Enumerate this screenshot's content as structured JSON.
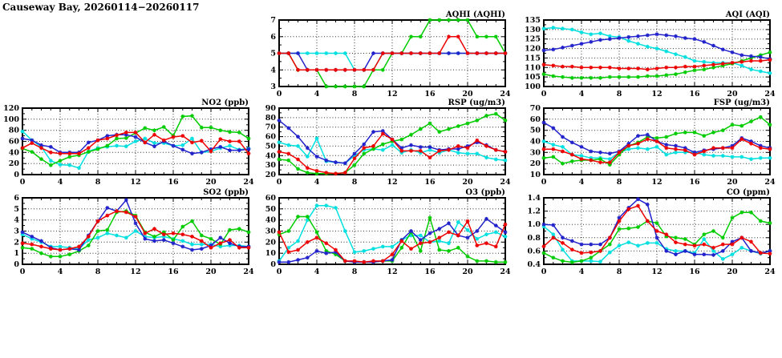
{
  "page_title": "Causeway Bay, 20260114−20260117",
  "colors": {
    "blue": "#2222cc",
    "red": "#ee0000",
    "green": "#00cc00",
    "cyan": "#00e0e0",
    "grid": "#333333",
    "axis": "#000000"
  },
  "chart_data": {
    "type": "line",
    "x_label_ticks": [
      0,
      4,
      8,
      12,
      16,
      20,
      24
    ],
    "x_hours": [
      0,
      1,
      2,
      3,
      4,
      5,
      6,
      7,
      8,
      9,
      10,
      11,
      12,
      13,
      14,
      15,
      16,
      17,
      18,
      19,
      20,
      21,
      22,
      23,
      24
    ],
    "xlabel": "",
    "series_order": [
      "cyan",
      "green",
      "blue",
      "red"
    ],
    "legend_position": "none",
    "grid": "dotted",
    "charts": [
      {
        "id": "aqhi",
        "title": "AQHI (AQHI)",
        "row": 0,
        "col": 1,
        "ylim": [
          3,
          7
        ],
        "ystep": 1,
        "ydecimals": 0,
        "series": {
          "cyan": [
            5,
            5,
            5,
            5,
            5,
            5,
            5,
            5,
            4,
            4,
            4,
            5,
            5,
            5,
            5,
            5,
            5,
            5,
            5,
            5,
            5,
            5,
            5,
            5,
            5
          ],
          "green": [
            5,
            5,
            4,
            4,
            4,
            3,
            3,
            3,
            3,
            3,
            4,
            4,
            5,
            5,
            6,
            6,
            7,
            7,
            7,
            7,
            7,
            6,
            6,
            6,
            5
          ],
          "blue": [
            5,
            5,
            5,
            4,
            4,
            4,
            4,
            4,
            4,
            4,
            5,
            5,
            5,
            5,
            5,
            5,
            5,
            5,
            5,
            5,
            5,
            5,
            5,
            5,
            5
          ],
          "red": [
            5,
            5,
            4,
            4,
            4,
            4,
            4,
            4,
            4,
            4,
            4,
            5,
            5,
            5,
            5,
            5,
            5,
            5,
            6,
            6,
            5,
            5,
            5,
            5,
            5
          ]
        }
      },
      {
        "id": "aqi",
        "title": "AQI (AQI)",
        "row": 0,
        "col": 2,
        "ylim": [
          100,
          135
        ],
        "ystep": 5,
        "ydecimals": 0,
        "series": {
          "cyan": [
            130.5,
            131,
            130.5,
            130,
            128.5,
            127.5,
            128,
            126.5,
            126,
            124,
            122.5,
            121,
            120,
            118.5,
            117,
            115.5,
            113.5,
            113,
            112.5,
            112.5,
            112.5,
            111,
            109,
            108,
            107
          ],
          "green": [
            106.5,
            105.5,
            105,
            104.5,
            104.5,
            104.5,
            104.5,
            105,
            105,
            105,
            105,
            105.5,
            105.5,
            106,
            106.5,
            107.5,
            108.5,
            109,
            110,
            111,
            112,
            113.5,
            115,
            116.5,
            118
          ],
          "blue": [
            119,
            119.5,
            120.5,
            121.5,
            122.5,
            123.5,
            124.5,
            125,
            125.5,
            126,
            126.5,
            127,
            127.5,
            127,
            126.5,
            125.5,
            125,
            123.5,
            121.5,
            119.5,
            118,
            116.5,
            116,
            115.5,
            114.5
          ],
          "red": [
            111.5,
            111,
            110.5,
            110.5,
            110,
            110,
            110,
            110,
            109.5,
            109.5,
            109.5,
            109,
            109.5,
            110,
            110,
            110.5,
            110.5,
            111,
            111.5,
            112,
            112.5,
            113,
            113.5,
            113.5,
            114
          ]
        }
      },
      {
        "id": "no2",
        "title": "NO2 (ppb)",
        "row": 1,
        "col": 0,
        "ylim": [
          0,
          120
        ],
        "ystep": 20,
        "ydecimals": 0,
        "series": {
          "cyan": [
            78,
            62,
            50,
            25,
            18,
            17,
            12,
            42,
            48,
            50,
            52,
            51,
            60,
            65,
            57,
            57,
            52,
            53,
            65,
            40,
            42,
            48,
            52,
            45,
            47
          ],
          "green": [
            47,
            41,
            28,
            17,
            25,
            32,
            35,
            41,
            46,
            52,
            65,
            66,
            75,
            84,
            80,
            86,
            70,
            105,
            106,
            85,
            85,
            80,
            77,
            76,
            65
          ],
          "blue": [
            65,
            62,
            53,
            50,
            40,
            40,
            40,
            58,
            62,
            70,
            72,
            72,
            68,
            58,
            51,
            60,
            52,
            45,
            38,
            40,
            46,
            50,
            44,
            44,
            46
          ],
          "red": [
            48,
            57,
            48,
            40,
            38,
            38,
            38,
            48,
            62,
            65,
            71,
            76,
            76,
            58,
            72,
            62,
            68,
            70,
            58,
            61,
            42,
            64,
            60,
            60,
            38
          ]
        }
      },
      {
        "id": "rsp",
        "title": "RSP (ug/m3)",
        "row": 1,
        "col": 1,
        "ylim": [
          20,
          90
        ],
        "ystep": 10,
        "ydecimals": 0,
        "series": {
          "cyan": [
            54,
            51,
            50,
            39,
            58,
            34,
            33,
            32,
            40,
            46,
            47,
            46,
            51,
            43,
            46,
            43,
            46,
            43,
            46,
            43,
            42,
            42,
            38,
            36,
            35
          ],
          "green": [
            36,
            35,
            26,
            22,
            21,
            21,
            21,
            22,
            30,
            42,
            47,
            52,
            55,
            57,
            62,
            68,
            74,
            65,
            68,
            71,
            74,
            77,
            82,
            84,
            77
          ],
          "blue": [
            77,
            69,
            60,
            48,
            39,
            35,
            33,
            32,
            42,
            52,
            65,
            66,
            57,
            48,
            51,
            49,
            49,
            46,
            47,
            47,
            50,
            54,
            51,
            46,
            44
          ],
          "red": [
            44,
            42,
            36,
            27,
            24,
            22,
            21,
            22,
            37,
            48,
            50,
            63,
            57,
            45,
            45,
            45,
            38,
            45,
            46,
            50,
            48,
            56,
            50,
            46,
            44
          ]
        }
      },
      {
        "id": "fsp",
        "title": "FSP (ug/m3)",
        "row": 1,
        "col": 2,
        "ylim": [
          10,
          70
        ],
        "ystep": 10,
        "ydecimals": 0,
        "series": {
          "cyan": [
            40,
            37,
            35,
            28,
            27,
            25,
            25,
            24,
            30,
            33,
            34,
            33,
            35,
            28,
            30,
            30,
            30,
            28,
            27,
            27,
            26,
            26,
            24,
            25,
            25
          ],
          "green": [
            25,
            26,
            20,
            22,
            23,
            23,
            24,
            19,
            28,
            36,
            39,
            44,
            43,
            44,
            47,
            48,
            48,
            45,
            48,
            50,
            55,
            54,
            58,
            62,
            55
          ],
          "blue": [
            57,
            52,
            44,
            39,
            35,
            31,
            30,
            29,
            31,
            38,
            45,
            46,
            40,
            37,
            36,
            34,
            30,
            32,
            33,
            34,
            36,
            43,
            40,
            36,
            34
          ],
          "red": [
            33,
            33,
            31,
            28,
            24,
            23,
            21,
            21,
            30,
            36,
            38,
            42,
            40,
            34,
            33,
            32,
            28,
            31,
            34,
            34,
            34,
            42,
            38,
            34,
            33
          ]
        }
      },
      {
        "id": "so2",
        "title": "SO2 (ppb)",
        "row": 2,
        "col": 0,
        "ylim": [
          0,
          6
        ],
        "ystep": 1,
        "ydecimals": 0,
        "series": {
          "cyan": [
            2.7,
            2.3,
            2.0,
            1.6,
            1.6,
            1.5,
            1.4,
            2.2,
            2.4,
            2.8,
            2.6,
            2.4,
            3.0,
            2.5,
            2.4,
            2.5,
            2.3,
            2.1,
            1.8,
            1.8,
            1.8,
            1.6,
            1.7,
            1.7,
            1.6
          ],
          "green": [
            1.5,
            1.4,
            1.0,
            0.7,
            0.7,
            0.9,
            1.2,
            1.7,
            3.0,
            3.1,
            4.7,
            4.8,
            4.4,
            2.9,
            2.5,
            2.9,
            2.2,
            3.4,
            3.9,
            2.6,
            2.3,
            1.8,
            3.1,
            3.2,
            2.9
          ],
          "blue": [
            2.9,
            2.5,
            2.1,
            1.5,
            1.3,
            1.4,
            1.3,
            2.6,
            3.9,
            5.1,
            4.8,
            5.8,
            3.7,
            2.3,
            2.1,
            2.2,
            1.9,
            1.6,
            1.3,
            1.4,
            1.7,
            2.4,
            1.9,
            1.6,
            1.6
          ],
          "red": [
            1.9,
            1.8,
            1.6,
            1.4,
            1.3,
            1.4,
            1.6,
            2.5,
            3.9,
            4.4,
            4.8,
            4.7,
            4.3,
            2.8,
            3.2,
            2.7,
            2.8,
            2.7,
            2.5,
            2.1,
            1.5,
            1.9,
            2.2,
            1.5,
            1.5
          ]
        }
      },
      {
        "id": "o3",
        "title": "O3 (ppb)",
        "row": 2,
        "col": 1,
        "ylim": [
          0,
          60
        ],
        "ystep": 10,
        "ydecimals": 0,
        "series": {
          "cyan": [
            3,
            15,
            21,
            40,
            53,
            53,
            51,
            30,
            11,
            12,
            14,
            16,
            16,
            22,
            26,
            26,
            20,
            21,
            19,
            38,
            31,
            23,
            27,
            29,
            25
          ],
          "green": [
            27,
            30,
            43,
            43,
            29,
            12,
            9,
            3,
            2,
            2,
            2,
            3,
            3,
            15,
            29,
            12,
            42,
            13,
            12,
            15,
            7,
            3,
            3,
            2,
            2
          ],
          "blue": [
            2,
            2,
            4,
            6,
            12,
            10,
            11,
            3,
            2,
            2,
            2,
            3,
            4,
            22,
            30,
            22,
            28,
            32,
            37,
            26,
            24,
            30,
            41,
            35,
            29
          ],
          "red": [
            29,
            11,
            13,
            20,
            24,
            19,
            13,
            3,
            3,
            2,
            3,
            3,
            9,
            21,
            14,
            19,
            20,
            24,
            29,
            26,
            39,
            17,
            19,
            16,
            36
          ]
        }
      },
      {
        "id": "co",
        "title": "CO (ppm)",
        "row": 2,
        "col": 2,
        "ylim": [
          0.4,
          1.4
        ],
        "ystep": 0.2,
        "ydecimals": 1,
        "series": {
          "cyan": [
            0.97,
            0.85,
            0.62,
            0.45,
            0.45,
            0.45,
            0.44,
            0.58,
            0.68,
            0.73,
            0.68,
            0.72,
            0.72,
            0.63,
            0.6,
            0.6,
            0.57,
            0.78,
            0.6,
            0.48,
            0.55,
            0.65,
            0.6,
            0.56,
            0.6
          ],
          "green": [
            0.57,
            0.5,
            0.45,
            0.43,
            0.45,
            0.5,
            0.6,
            0.7,
            0.93,
            0.94,
            0.96,
            1.05,
            1.02,
            0.82,
            0.8,
            0.78,
            0.7,
            0.85,
            0.9,
            0.8,
            1.1,
            1.18,
            1.18,
            1.05,
            1.02
          ],
          "blue": [
            1.0,
            0.99,
            0.8,
            0.75,
            0.7,
            0.7,
            0.7,
            0.8,
            1.1,
            1.25,
            1.38,
            1.3,
            0.8,
            0.6,
            0.55,
            0.6,
            0.55,
            0.55,
            0.54,
            0.6,
            0.74,
            0.8,
            0.6,
            0.57,
            0.6
          ],
          "red": [
            0.67,
            0.8,
            0.72,
            0.62,
            0.57,
            0.58,
            0.6,
            0.8,
            1.05,
            1.23,
            1.28,
            1.05,
            0.9,
            0.85,
            0.73,
            0.7,
            0.68,
            0.7,
            0.65,
            0.7,
            0.7,
            0.8,
            0.74,
            0.57,
            0.56
          ]
        }
      }
    ]
  }
}
